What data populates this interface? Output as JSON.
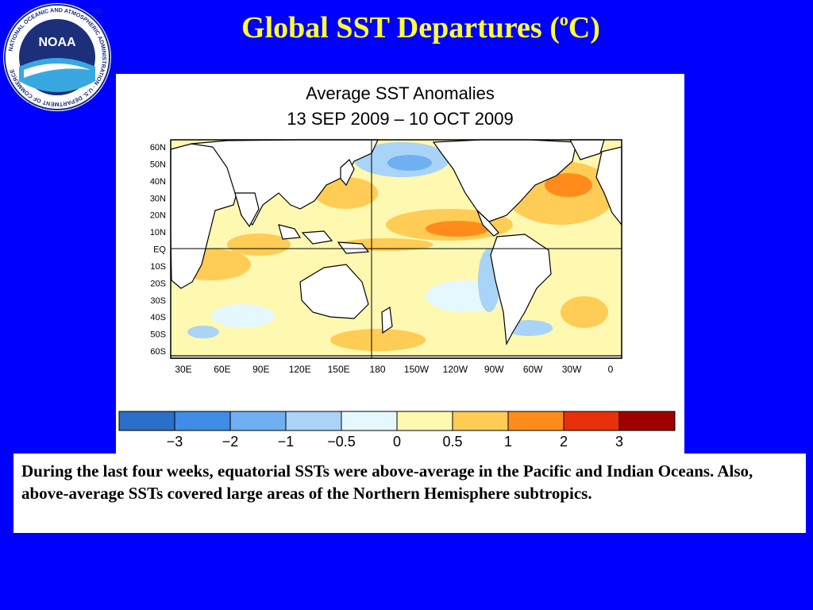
{
  "header": {
    "title_main": "Global SST Departures (",
    "title_sup": "o",
    "title_end": "C)"
  },
  "logo": {
    "text": "NOAA",
    "ring_text": "NATIONAL OCEANIC AND ATMOSPHERIC ADMINISTRATION · U.S. DEPARTMENT OF COMMERCE",
    "registered": "®",
    "icon": "noaa-logo-icon"
  },
  "map": {
    "title_line1": "Average SST Anomalies",
    "title_line2": "13 SEP 2009 – 10 OCT 2009",
    "lat_labels": [
      "60N",
      "50N",
      "40N",
      "30N",
      "20N",
      "10N",
      "EQ",
      "10S",
      "20S",
      "30S",
      "40S",
      "50S",
      "60S"
    ],
    "lon_labels": [
      "30E",
      "60E",
      "90E",
      "120E",
      "150E",
      "180",
      "150W",
      "120W",
      "90W",
      "60W",
      "30W",
      "0"
    ],
    "land_color": "#ffffff",
    "coast_color": "#000000"
  },
  "legend": {
    "colors": [
      "#2a6fc8",
      "#3f8de6",
      "#6fb0f2",
      "#a9d3f7",
      "#e6f8ff",
      "#fff8b0",
      "#ffcc55",
      "#ff8c1a",
      "#e8300a",
      "#a00000"
    ],
    "tick_labels": [
      "−3",
      "−2",
      "−1",
      "−0.5",
      "0",
      "0.5",
      "1",
      "2",
      "3"
    ]
  },
  "caption": {
    "text": "During the last four weeks, equatorial SSTs were above-average in the Pacific and Indian Oceans.  Also, above-average SSTs covered large areas of the Northern Hemisphere subtropics."
  }
}
